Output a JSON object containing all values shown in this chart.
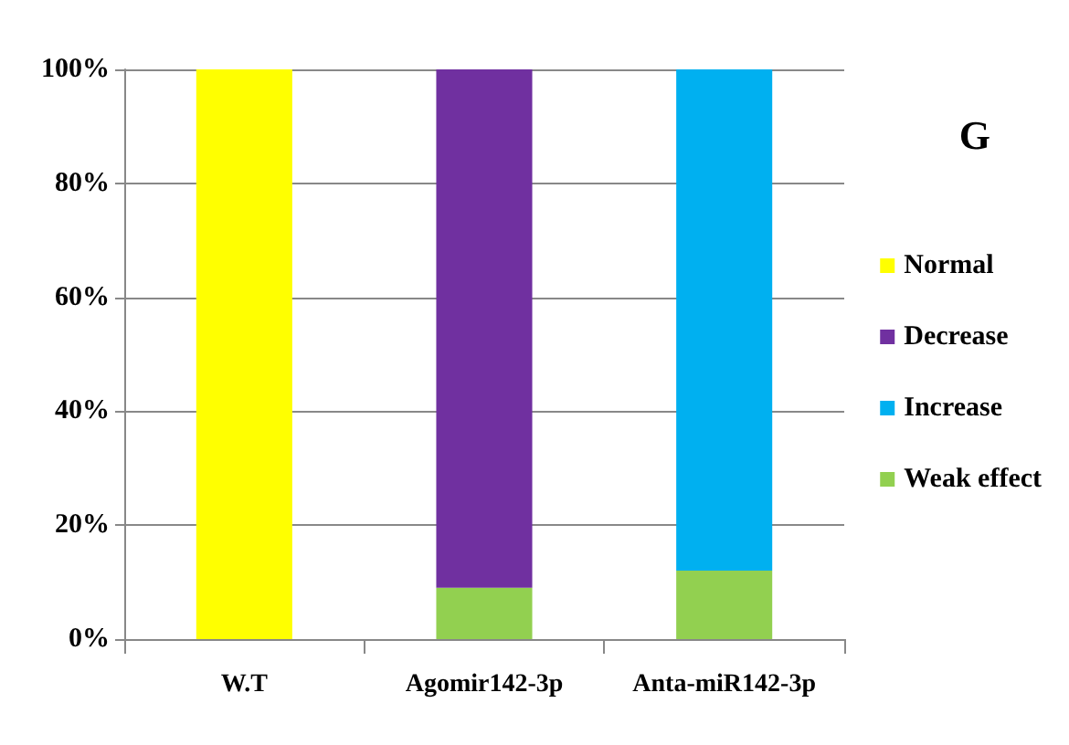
{
  "chart_data": {
    "type": "bar",
    "title": "G",
    "stacked": true,
    "categories": [
      "W.T",
      "Agomir142-3p",
      "Anta-miR142-3p"
    ],
    "series": [
      {
        "name": "Weak effect",
        "color": "#92d050",
        "values": [
          0,
          9,
          12
        ]
      },
      {
        "name": "Increase",
        "color": "#00b0f0",
        "values": [
          0,
          0,
          88
        ]
      },
      {
        "name": "Decrease",
        "color": "#7030a0",
        "values": [
          0,
          91,
          0
        ]
      },
      {
        "name": "Normal",
        "color": "#ffff00",
        "values": [
          100,
          0,
          0
        ]
      }
    ],
    "ylim": [
      0,
      100
    ],
    "yticks": [
      {
        "value": 0,
        "label": "0%"
      },
      {
        "value": 20,
        "label": "20%"
      },
      {
        "value": 40,
        "label": "40%"
      },
      {
        "value": 60,
        "label": "60%"
      },
      {
        "value": 80,
        "label": "80%"
      },
      {
        "value": 100,
        "label": "100%"
      }
    ],
    "grid": "y",
    "legend": "right"
  }
}
